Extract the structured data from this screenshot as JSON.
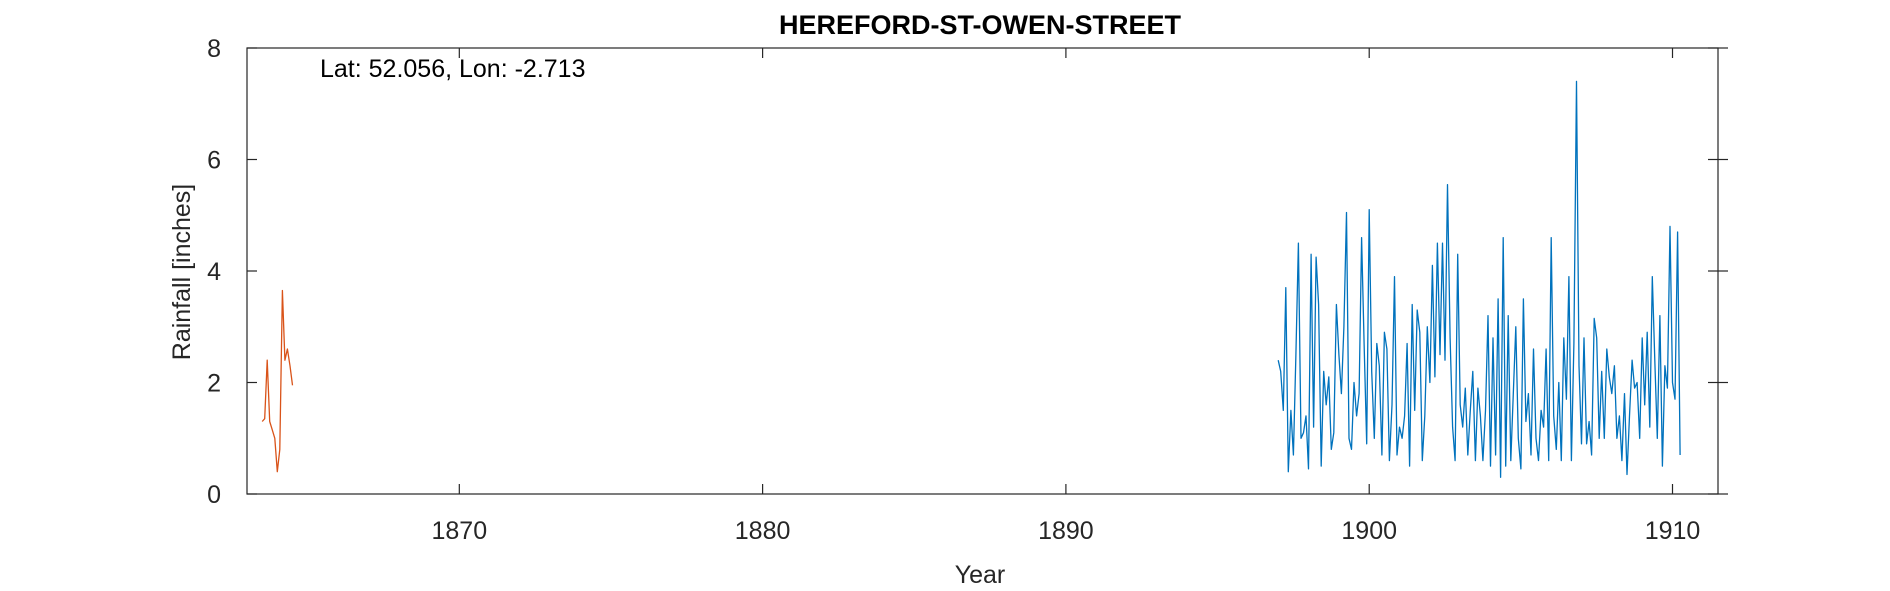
{
  "chart_data": {
    "type": "line",
    "title": "HEREFORD-ST-OWEN-STREET",
    "annotation": "Lat: 52.056, Lon: -2.713",
    "xlabel": "Year",
    "ylabel": "Rainfall [inches]",
    "xlim": [
      1863,
      1911.5
    ],
    "ylim": [
      0,
      8
    ],
    "xticks": [
      1870,
      1880,
      1890,
      1900,
      1910
    ],
    "yticks": [
      0,
      2,
      4,
      6,
      8
    ],
    "grid": false,
    "colors": {
      "series_early": "#D95319",
      "series_late": "#0072BD",
      "axes": "#262626"
    },
    "series": [
      {
        "color_key": "series_early",
        "x": [
          1863.5,
          1863.583,
          1863.667,
          1863.75,
          1863.833,
          1863.917,
          1864.0,
          1864.083,
          1864.167,
          1864.25,
          1864.333,
          1864.417,
          1864.5
        ],
        "y": [
          1.3,
          1.35,
          2.4,
          1.3,
          1.15,
          1.0,
          0.4,
          0.8,
          3.65,
          2.4,
          2.6,
          2.3,
          1.95
        ]
      },
      {
        "color_key": "series_late",
        "x": [
          1897.0,
          1897.083,
          1897.167,
          1897.25,
          1897.333,
          1897.417,
          1897.5,
          1897.583,
          1897.667,
          1897.75,
          1897.833,
          1897.917,
          1898.0,
          1898.083,
          1898.167,
          1898.25,
          1898.333,
          1898.417,
          1898.5,
          1898.583,
          1898.667,
          1898.75,
          1898.833,
          1898.917,
          1899.0,
          1899.083,
          1899.167,
          1899.25,
          1899.333,
          1899.417,
          1899.5,
          1899.583,
          1899.667,
          1899.75,
          1899.833,
          1899.917,
          1900.0,
          1900.083,
          1900.167,
          1900.25,
          1900.333,
          1900.417,
          1900.5,
          1900.583,
          1900.667,
          1900.75,
          1900.833,
          1900.917,
          1901.0,
          1901.083,
          1901.167,
          1901.25,
          1901.333,
          1901.417,
          1901.5,
          1901.583,
          1901.667,
          1901.75,
          1901.833,
          1901.917,
          1902.0,
          1902.083,
          1902.167,
          1902.25,
          1902.333,
          1902.417,
          1902.5,
          1902.583,
          1902.667,
          1902.75,
          1902.833,
          1902.917,
          1903.0,
          1903.083,
          1903.167,
          1903.25,
          1903.333,
          1903.417,
          1903.5,
          1903.583,
          1903.667,
          1903.75,
          1903.833,
          1903.917,
          1904.0,
          1904.083,
          1904.167,
          1904.25,
          1904.333,
          1904.417,
          1904.5,
          1904.583,
          1904.667,
          1904.75,
          1904.833,
          1904.917,
          1905.0,
          1905.083,
          1905.167,
          1905.25,
          1905.333,
          1905.417,
          1905.5,
          1905.583,
          1905.667,
          1905.75,
          1905.833,
          1905.917,
          1906.0,
          1906.083,
          1906.167,
          1906.25,
          1906.333,
          1906.417,
          1906.5,
          1906.583,
          1906.667,
          1906.75,
          1906.833,
          1906.917,
          1907.0,
          1907.083,
          1907.167,
          1907.25,
          1907.333,
          1907.417,
          1907.5,
          1907.583,
          1907.667,
          1907.75,
          1907.833,
          1907.917,
          1908.0,
          1908.083,
          1908.167,
          1908.25,
          1908.333,
          1908.417,
          1908.5,
          1908.583,
          1908.667,
          1908.75,
          1908.833,
          1908.917,
          1909.0,
          1909.083,
          1909.167,
          1909.25,
          1909.333,
          1909.417,
          1909.5,
          1909.583,
          1909.667,
          1909.75,
          1909.833,
          1909.917,
          1910.0,
          1910.083,
          1910.167,
          1910.25
        ],
        "y": [
          2.4,
          2.2,
          1.5,
          3.7,
          0.4,
          1.5,
          0.7,
          2.5,
          4.5,
          1.0,
          1.1,
          1.4,
          0.45,
          4.3,
          1.2,
          4.25,
          3.4,
          0.5,
          2.2,
          1.6,
          2.1,
          0.8,
          1.1,
          3.4,
          2.5,
          1.8,
          3.0,
          5.05,
          1.0,
          0.8,
          2.0,
          1.4,
          1.8,
          4.6,
          2.7,
          0.9,
          5.1,
          2.2,
          1.0,
          2.7,
          2.3,
          0.7,
          2.9,
          2.6,
          0.6,
          1.6,
          3.9,
          0.7,
          1.2,
          1.0,
          1.4,
          2.7,
          0.5,
          3.4,
          1.5,
          3.3,
          2.9,
          0.6,
          1.4,
          3.0,
          2.0,
          4.1,
          2.1,
          4.5,
          2.5,
          4.5,
          2.4,
          5.55,
          2.8,
          1.2,
          0.6,
          4.3,
          1.6,
          1.2,
          1.9,
          0.7,
          1.5,
          2.2,
          0.6,
          1.9,
          1.4,
          0.6,
          1.5,
          3.2,
          0.5,
          2.8,
          0.7,
          3.5,
          0.3,
          4.6,
          0.5,
          3.2,
          0.6,
          1.8,
          3.0,
          1.0,
          0.45,
          3.5,
          1.3,
          1.8,
          0.7,
          2.6,
          1.0,
          0.6,
          1.5,
          1.2,
          2.6,
          0.6,
          4.6,
          1.4,
          0.8,
          2.0,
          0.6,
          2.8,
          1.7,
          3.9,
          0.6,
          2.7,
          7.4,
          2.3,
          0.9,
          2.8,
          0.9,
          1.3,
          0.7,
          3.15,
          2.8,
          1.0,
          2.2,
          1.0,
          2.6,
          2.1,
          1.8,
          2.3,
          1.0,
          1.4,
          0.6,
          1.8,
          0.35,
          1.4,
          2.4,
          1.9,
          2.0,
          1.0,
          2.8,
          1.6,
          2.9,
          1.2,
          3.9,
          2.4,
          1.0,
          3.2,
          0.5,
          2.3,
          1.9,
          4.8,
          2.0,
          1.7,
          4.7,
          0.7
        ]
      }
    ]
  }
}
